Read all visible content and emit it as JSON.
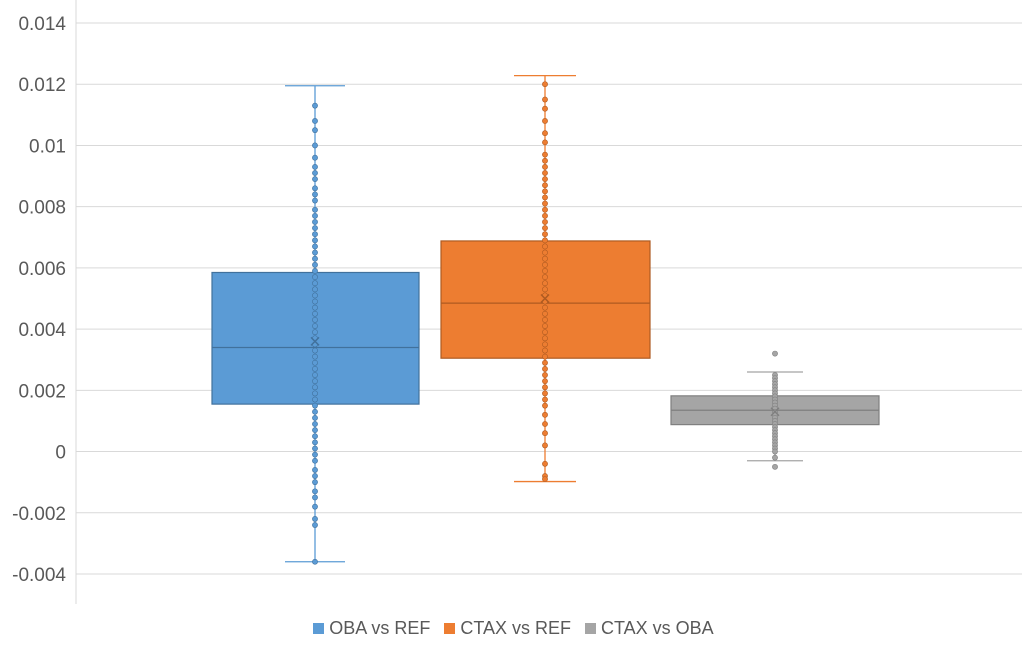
{
  "chart_data": {
    "type": "box",
    "title": "",
    "xlabel": "",
    "ylabel": "",
    "ylim": [
      -0.0045,
      0.0145
    ],
    "y_ticks": [
      "0.014",
      "0.012",
      "0.01",
      "0.008",
      "0.006",
      "0.004",
      "0.002",
      "0",
      "-0.002",
      "-0.004"
    ],
    "y_tick_values": [
      0.014,
      0.012,
      0.01,
      0.008,
      0.006,
      0.004,
      0.002,
      0,
      -0.002,
      -0.004
    ],
    "grid": true,
    "legend_position": "bottom",
    "series": [
      {
        "name": "OBA vs REF",
        "color": "#5b9bd5",
        "min": -0.0036,
        "q1": 0.00155,
        "median": 0.0034,
        "q3": 0.00585,
        "max": 0.01195,
        "mean": 0.0036,
        "points": [
          0.0113,
          0.0108,
          0.0105,
          0.01,
          0.0096,
          0.0093,
          0.0091,
          0.0089,
          0.0086,
          0.0084,
          0.0082,
          0.0079,
          0.0077,
          0.0075,
          0.0073,
          0.0071,
          0.0069,
          0.0067,
          0.0065,
          0.0063,
          0.0061,
          0.0059,
          0.0057,
          0.0055,
          0.0053,
          0.0051,
          0.0049,
          0.0047,
          0.0045,
          0.0043,
          0.0041,
          0.0039,
          0.0037,
          0.0035,
          0.0033,
          0.0031,
          0.0029,
          0.0027,
          0.0025,
          0.0023,
          0.0021,
          0.0019,
          0.0017,
          0.0015,
          0.0013,
          0.0011,
          0.0009,
          0.0007,
          0.0005,
          0.0003,
          0.0001,
          -0.0001,
          -0.0003,
          -0.0006,
          -0.0008,
          -0.001,
          -0.0013,
          -0.0015,
          -0.0018,
          -0.0022,
          -0.0024,
          -0.0036
        ]
      },
      {
        "name": "CTAX vs REF",
        "color": "#ed7d31",
        "min": -0.00098,
        "q1": 0.00305,
        "median": 0.00485,
        "q3": 0.00688,
        "max": 0.01228,
        "mean": 0.005,
        "points": [
          0.012,
          0.0115,
          0.0112,
          0.0108,
          0.0104,
          0.0101,
          0.0097,
          0.0095,
          0.0093,
          0.0091,
          0.0089,
          0.0087,
          0.0085,
          0.0083,
          0.0081,
          0.0079,
          0.0077,
          0.0075,
          0.0073,
          0.0071,
          0.0069,
          0.0067,
          0.0065,
          0.0063,
          0.0061,
          0.0059,
          0.0057,
          0.0055,
          0.0053,
          0.0051,
          0.0049,
          0.0047,
          0.0045,
          0.0043,
          0.0041,
          0.0039,
          0.0037,
          0.0035,
          0.0033,
          0.0031,
          0.0029,
          0.0027,
          0.0025,
          0.0023,
          0.0021,
          0.0019,
          0.0017,
          0.0015,
          0.0012,
          0.0009,
          0.0006,
          0.0002,
          -0.0004,
          -0.0008,
          -0.0009
        ]
      },
      {
        "name": "CTAX vs OBA",
        "color": "#a5a5a5",
        "min": -0.0003,
        "q1": 0.00088,
        "median": 0.00135,
        "q3": 0.00182,
        "max": 0.0026,
        "mean": 0.0013,
        "points": [
          0.0032,
          0.0025,
          0.0024,
          0.0023,
          0.0022,
          0.0021,
          0.002,
          0.0019,
          0.0018,
          0.0017,
          0.0016,
          0.0015,
          0.0014,
          0.0013,
          0.0012,
          0.0011,
          0.001,
          0.0009,
          0.0008,
          0.0007,
          0.0006,
          0.0005,
          0.0004,
          0.0003,
          0.0002,
          0.0001,
          0.0,
          -0.0002,
          -0.0005
        ]
      }
    ]
  }
}
